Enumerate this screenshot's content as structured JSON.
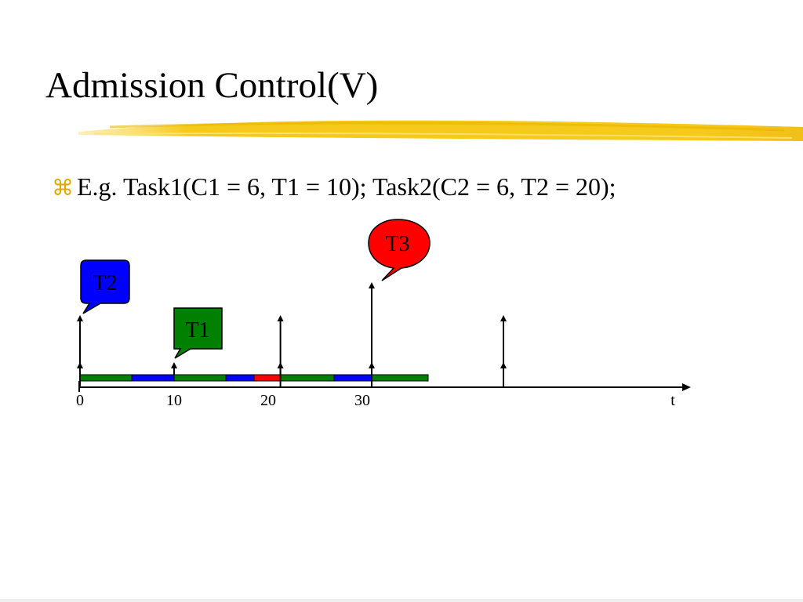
{
  "slide": {
    "title": "Admission Control(V)",
    "bullet_text": "E.g. Task1(C1 = 6, T1 = 10); Task2(C2 = 6, T2 = 20);",
    "bullet_icon": "command-key-bullet-icon",
    "underline_color": "#f5c400"
  },
  "diagram": {
    "axis_label": "t",
    "ticks": [
      {
        "value": 0,
        "label": "0"
      },
      {
        "value": 10,
        "label": "10"
      },
      {
        "value": 20,
        "label": "20"
      },
      {
        "value": 30,
        "label": "30"
      }
    ],
    "schedule": [
      {
        "task": "T1",
        "start": 0,
        "end": 5.5,
        "color": "#008000"
      },
      {
        "task": "T2",
        "start": 5.5,
        "end": 10,
        "color": "#0000ff"
      },
      {
        "task": "T1",
        "start": 10,
        "end": 15.5,
        "color": "#008000"
      },
      {
        "task": "T2",
        "start": 15.5,
        "end": 18.5,
        "color": "#0000ff"
      },
      {
        "task": "T3",
        "start": 18.5,
        "end": 21.3,
        "color": "#ff0000"
      },
      {
        "task": "T1",
        "start": 21.3,
        "end": 27,
        "color": "#008000"
      },
      {
        "task": "T2",
        "start": 27,
        "end": 31,
        "color": "#0000ff"
      },
      {
        "task": "T1",
        "start": 31,
        "end": 37,
        "color": "#008000"
      }
    ],
    "arrivals": [
      {
        "time": 0,
        "level": "mid"
      },
      {
        "time": 0,
        "level": "low"
      },
      {
        "time": 10,
        "level": "low"
      },
      {
        "time": 21.3,
        "level": "mid"
      },
      {
        "time": 21.3,
        "level": "low"
      },
      {
        "time": 31,
        "level": "high"
      },
      {
        "time": 31,
        "level": "low"
      },
      {
        "time": 45,
        "level": "mid"
      },
      {
        "time": 45,
        "level": "low"
      }
    ],
    "callouts": [
      {
        "label": "T2",
        "color": "#0000ff"
      },
      {
        "label": "T1",
        "color": "#008000"
      },
      {
        "label": "T3",
        "color": "#ff0000"
      }
    ]
  }
}
